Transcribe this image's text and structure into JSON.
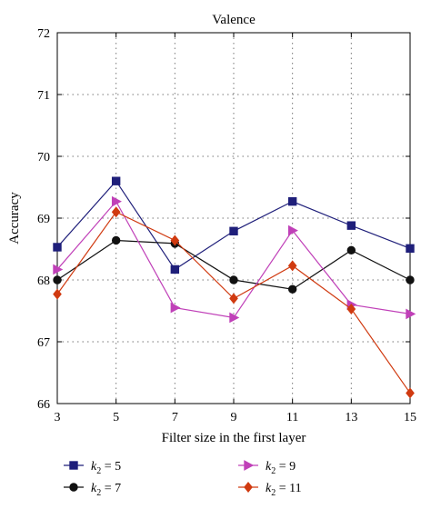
{
  "chart_data": {
    "type": "line",
    "title": "Valence",
    "xlabel": "Filter size in the first layer",
    "ylabel": "Accuracy",
    "x": [
      3,
      5,
      7,
      9,
      11,
      13,
      15
    ],
    "xlim": [
      3,
      15
    ],
    "ylim": [
      66,
      72
    ],
    "yticks": [
      66,
      67,
      68,
      69,
      70,
      71,
      72
    ],
    "grid": "dotted",
    "legend_position": "bottom",
    "series": [
      {
        "name_prefix": "k",
        "name_sub": "2",
        "name_suffix": " = 5",
        "color": "#1f1f7a",
        "marker": "square",
        "values": [
          68.53,
          69.6,
          68.17,
          68.79,
          69.27,
          68.88,
          68.51
        ]
      },
      {
        "name_prefix": "k",
        "name_sub": "2",
        "name_suffix": " = 7",
        "color": "#111111",
        "marker": "circle",
        "values": [
          68.0,
          68.64,
          68.59,
          68.0,
          67.85,
          68.48,
          68.0
        ]
      },
      {
        "name_prefix": "k",
        "name_sub": "2",
        "name_suffix": " = 9",
        "color": "#c040b8",
        "marker": "triangle-right",
        "values": [
          68.17,
          69.27,
          67.55,
          67.39,
          68.8,
          67.6,
          67.45
        ]
      },
      {
        "name_prefix": "k",
        "name_sub": "2",
        "name_suffix": " = 11",
        "color": "#d03a10",
        "marker": "diamond",
        "values": [
          67.77,
          69.1,
          68.64,
          67.7,
          68.23,
          67.53,
          66.17
        ]
      }
    ]
  }
}
